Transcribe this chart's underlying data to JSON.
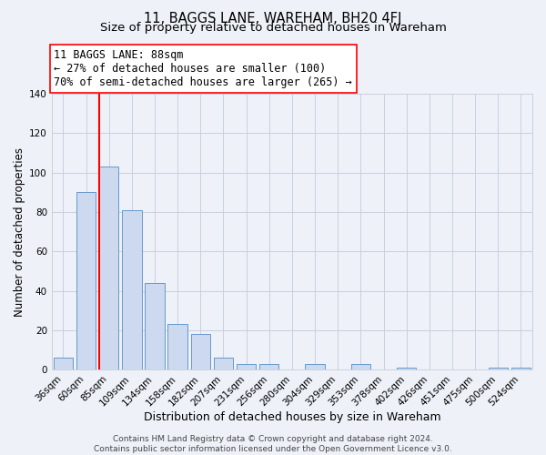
{
  "title": "11, BAGGS LANE, WAREHAM, BH20 4FJ",
  "subtitle": "Size of property relative to detached houses in Wareham",
  "xlabel": "Distribution of detached houses by size in Wareham",
  "ylabel": "Number of detached properties",
  "bar_labels": [
    "36sqm",
    "60sqm",
    "85sqm",
    "109sqm",
    "134sqm",
    "158sqm",
    "182sqm",
    "207sqm",
    "231sqm",
    "256sqm",
    "280sqm",
    "304sqm",
    "329sqm",
    "353sqm",
    "378sqm",
    "402sqm",
    "426sqm",
    "451sqm",
    "475sqm",
    "500sqm",
    "524sqm"
  ],
  "bar_values": [
    6,
    90,
    103,
    81,
    44,
    23,
    18,
    6,
    3,
    3,
    0,
    3,
    0,
    3,
    0,
    1,
    0,
    0,
    0,
    1,
    1
  ],
  "bar_color": "#ccd9ee",
  "bar_edge_color": "#6699cc",
  "ylim": [
    0,
    140
  ],
  "yticks": [
    0,
    20,
    40,
    60,
    80,
    100,
    120,
    140
  ],
  "annotation_box_text_line1": "11 BAGGS LANE: 88sqm",
  "annotation_box_text_line2": "← 27% of detached houses are smaller (100)",
  "annotation_box_text_line3": "70% of semi-detached houses are larger (265) →",
  "red_line_bar_index": 2,
  "footer_line1": "Contains HM Land Registry data © Crown copyright and database right 2024.",
  "footer_line2": "Contains public sector information licensed under the Open Government Licence v3.0.",
  "background_color": "#eef2f8",
  "grid_color": "#c8d0de",
  "title_fontsize": 10.5,
  "subtitle_fontsize": 9.5,
  "xlabel_fontsize": 9,
  "ylabel_fontsize": 8.5,
  "tick_fontsize": 7.5,
  "annotation_fontsize": 8.5,
  "footer_fontsize": 6.5
}
